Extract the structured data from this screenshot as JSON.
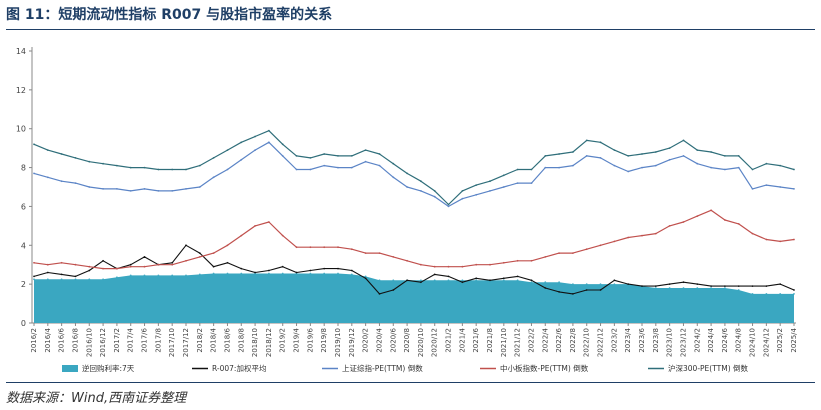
{
  "figure": {
    "title": "图 11：短期流动性指标 R007 与股指市盈率的关系",
    "source": "数据来源：Wind,西南证券整理"
  },
  "chart_data": {
    "type": "line",
    "ylim": [
      0,
      14
    ],
    "yticks": [
      0,
      2,
      4,
      6,
      8,
      10,
      12,
      14
    ],
    "grid": false,
    "legend_position": "bottom",
    "categories": [
      "2016/2",
      "2016/4",
      "2016/6",
      "2016/8",
      "2016/10",
      "2016/12",
      "2017/2",
      "2017/4",
      "2017/6",
      "2017/8",
      "2017/10",
      "2017/12",
      "2018/2",
      "2018/4",
      "2018/6",
      "2018/8",
      "2018/10",
      "2018/12",
      "2019/2",
      "2019/4",
      "2019/6",
      "2019/8",
      "2019/10",
      "2019/12",
      "2020/2",
      "2020/4",
      "2020/6",
      "2020/8",
      "2020/10",
      "2020/12",
      "2021/2",
      "2021/4",
      "2021/6",
      "2021/8",
      "2021/10",
      "2021/12",
      "2022/2",
      "2022/4",
      "2022/6",
      "2022/8",
      "2022/10",
      "2022/12",
      "2023/2",
      "2023/4",
      "2023/6",
      "2023/8",
      "2023/10",
      "2023/12",
      "2024/2",
      "2024/4",
      "2024/6",
      "2024/8",
      "2024/10",
      "2024/12",
      "2025/2",
      "2025/4"
    ],
    "series": [
      {
        "name": "逆回购利率:7天",
        "kind": "area",
        "color": "#3aa7c1",
        "values": [
          2.25,
          2.25,
          2.25,
          2.25,
          2.25,
          2.25,
          2.35,
          2.45,
          2.45,
          2.45,
          2.45,
          2.45,
          2.5,
          2.55,
          2.55,
          2.55,
          2.55,
          2.55,
          2.55,
          2.55,
          2.55,
          2.55,
          2.55,
          2.5,
          2.4,
          2.2,
          2.2,
          2.2,
          2.2,
          2.2,
          2.2,
          2.2,
          2.2,
          2.2,
          2.2,
          2.2,
          2.1,
          2.1,
          2.1,
          2.0,
          2.0,
          2.0,
          2.0,
          2.0,
          1.9,
          1.8,
          1.8,
          1.8,
          1.8,
          1.8,
          1.8,
          1.7,
          1.5,
          1.5,
          1.5,
          1.5
        ]
      },
      {
        "name": "R-007:加权平均",
        "kind": "line",
        "color": "#111111",
        "values": [
          2.4,
          2.6,
          2.5,
          2.4,
          2.7,
          3.2,
          2.8,
          3.0,
          3.4,
          3.0,
          3.1,
          4.0,
          3.6,
          2.9,
          3.1,
          2.8,
          2.6,
          2.7,
          2.9,
          2.6,
          2.7,
          2.8,
          2.8,
          2.7,
          2.3,
          1.5,
          1.7,
          2.2,
          2.1,
          2.5,
          2.4,
          2.1,
          2.3,
          2.2,
          2.3,
          2.4,
          2.2,
          1.8,
          1.6,
          1.5,
          1.7,
          1.7,
          2.2,
          2.0,
          1.9,
          1.9,
          2.0,
          2.1,
          2.0,
          1.9,
          1.9,
          1.9,
          1.9,
          1.9,
          2.0,
          1.7
        ]
      },
      {
        "name": "上证综指-PE(TTM) 倒数",
        "kind": "line",
        "color": "#5b84c6",
        "values": [
          7.7,
          7.5,
          7.3,
          7.2,
          7.0,
          6.9,
          6.9,
          6.8,
          6.9,
          6.8,
          6.8,
          6.9,
          7.0,
          7.5,
          7.9,
          8.4,
          8.9,
          9.3,
          8.6,
          7.9,
          7.9,
          8.1,
          8.0,
          8.0,
          8.3,
          8.1,
          7.5,
          7.0,
          6.8,
          6.5,
          6.0,
          6.4,
          6.6,
          6.8,
          7.0,
          7.2,
          7.2,
          8.0,
          8.0,
          8.1,
          8.6,
          8.5,
          8.1,
          7.8,
          8.0,
          8.1,
          8.4,
          8.6,
          8.2,
          8.0,
          7.9,
          8.0,
          6.9,
          7.1,
          7.0,
          6.9
        ]
      },
      {
        "name": "中小板指数-PE(TTM) 倒数",
        "kind": "line",
        "color": "#c0504d",
        "values": [
          3.1,
          3.0,
          3.1,
          3.0,
          2.9,
          2.8,
          2.8,
          2.9,
          2.9,
          3.0,
          3.0,
          3.2,
          3.4,
          3.6,
          4.0,
          4.5,
          5.0,
          5.2,
          4.5,
          3.9,
          3.9,
          3.9,
          3.9,
          3.8,
          3.6,
          3.6,
          3.4,
          3.2,
          3.0,
          2.9,
          2.9,
          2.9,
          3.0,
          3.0,
          3.1,
          3.2,
          3.2,
          3.4,
          3.6,
          3.6,
          3.8,
          4.0,
          4.2,
          4.4,
          4.5,
          4.6,
          5.0,
          5.2,
          5.5,
          5.8,
          5.3,
          5.1,
          4.6,
          4.3,
          4.2,
          4.3
        ]
      },
      {
        "name": "沪深300-PE(TTM) 倒数",
        "kind": "line",
        "color": "#2f6e7a",
        "values": [
          9.2,
          8.9,
          8.7,
          8.5,
          8.3,
          8.2,
          8.1,
          8.0,
          8.0,
          7.9,
          7.9,
          7.9,
          8.1,
          8.5,
          8.9,
          9.3,
          9.6,
          9.9,
          9.2,
          8.6,
          8.5,
          8.7,
          8.6,
          8.6,
          8.9,
          8.7,
          8.2,
          7.7,
          7.3,
          6.8,
          6.1,
          6.8,
          7.1,
          7.3,
          7.6,
          7.9,
          7.9,
          8.6,
          8.7,
          8.8,
          9.4,
          9.3,
          8.9,
          8.6,
          8.7,
          8.8,
          9.0,
          9.4,
          8.9,
          8.8,
          8.6,
          8.6,
          7.9,
          8.2,
          8.1,
          7.9
        ]
      }
    ]
  }
}
